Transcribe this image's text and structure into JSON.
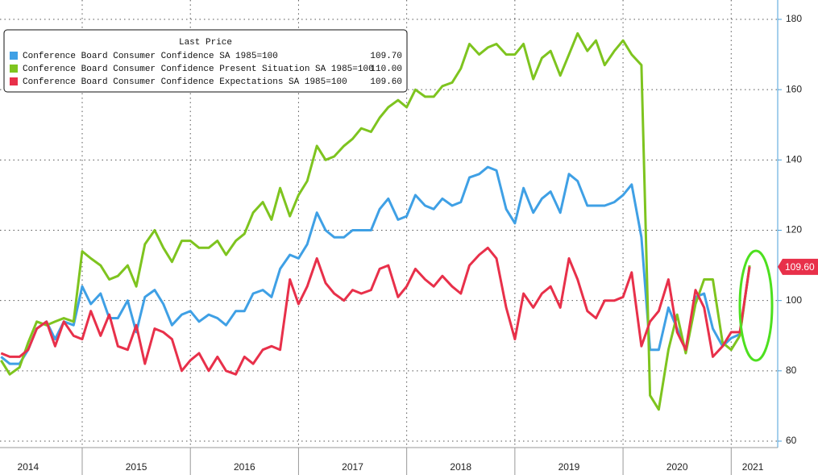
{
  "chart_data": {
    "type": "line",
    "x": [
      2014.25,
      2014.33,
      2014.42,
      2014.5,
      2014.58,
      2014.67,
      2014.75,
      2014.83,
      2014.92,
      2015,
      2015.08,
      2015.17,
      2015.25,
      2015.33,
      2015.42,
      2015.5,
      2015.58,
      2015.67,
      2015.75,
      2015.83,
      2015.92,
      2016,
      2016.08,
      2016.17,
      2016.25,
      2016.33,
      2016.42,
      2016.5,
      2016.58,
      2016.67,
      2016.75,
      2016.83,
      2016.92,
      2017,
      2017.08,
      2017.17,
      2017.25,
      2017.33,
      2017.42,
      2017.5,
      2017.58,
      2017.67,
      2017.75,
      2017.83,
      2017.92,
      2018,
      2018.08,
      2018.17,
      2018.25,
      2018.33,
      2018.42,
      2018.5,
      2018.58,
      2018.67,
      2018.75,
      2018.83,
      2018.92,
      2019,
      2019.08,
      2019.17,
      2019.25,
      2019.33,
      2019.42,
      2019.5,
      2019.58,
      2019.67,
      2019.75,
      2019.83,
      2019.92,
      2020,
      2020.08,
      2020.17,
      2020.25,
      2020.33,
      2020.42,
      2020.5,
      2020.58,
      2020.67,
      2020.75,
      2020.83,
      2020.92,
      2021,
      2021.08,
      2021.17
    ],
    "series": [
      {
        "name": "Conference Board Consumer Confidence SA 1985=100",
        "color": "#3fa0e5",
        "last_price": {
          "value": 109.7,
          "label": "109.70"
        },
        "values": [
          84,
          82,
          82,
          86,
          92,
          94,
          89,
          94,
          93,
          104,
          99,
          102,
          95,
          95,
          100,
          91,
          101,
          103,
          99,
          93,
          96,
          97,
          94,
          96,
          95,
          93,
          97,
          97,
          102,
          103,
          101,
          109,
          113,
          112,
          116,
          125,
          120,
          118,
          118,
          120,
          120,
          120,
          126,
          129,
          123,
          124,
          130,
          127,
          126,
          129,
          127,
          128,
          135,
          136,
          138,
          137,
          126,
          122,
          132,
          125,
          129,
          131,
          125,
          136,
          134,
          127,
          127,
          127,
          128,
          130,
          133,
          118,
          86,
          86,
          98,
          92,
          86,
          101,
          102,
          92,
          87,
          89.3,
          90.4,
          109.7
        ]
      },
      {
        "name": "Conference Board Consumer Confidence Present Situation SA 1985=100",
        "color": "#7ec41f",
        "last_price": {
          "value": 110,
          "label": "110.00"
        },
        "values": [
          83,
          79,
          81,
          88,
          94,
          93,
          94,
          95,
          94,
          114,
          112,
          110,
          106,
          107,
          110,
          104,
          116,
          120,
          115,
          111,
          117,
          117,
          115,
          115,
          117,
          113,
          117,
          119,
          125,
          128,
          123,
          132,
          124,
          130,
          134,
          144,
          140,
          141,
          144,
          146,
          149,
          148,
          152,
          155,
          157,
          155,
          160,
          158,
          158,
          161,
          162,
          166,
          173,
          170,
          172,
          173,
          170,
          170,
          173,
          163,
          169,
          171,
          164,
          170,
          176,
          171,
          174,
          167,
          171,
          174,
          170,
          167,
          73,
          69,
          86,
          96,
          85,
          99,
          106,
          106,
          88,
          86,
          90,
          110
        ]
      },
      {
        "name": "Conference Board Consumer Confidence Expectations SA 1985=100",
        "color": "#e8304a",
        "last_price": {
          "value": 109.6,
          "label": "109.60"
        },
        "tag": {
          "value": 109.6,
          "label": "109.60"
        },
        "values": [
          85,
          84,
          84,
          86,
          92,
          94,
          87,
          94,
          90,
          89,
          97,
          90,
          96,
          87,
          86,
          93,
          82,
          92,
          91,
          89,
          80,
          83,
          85,
          80,
          84,
          80,
          79,
          84,
          82,
          86,
          87,
          86,
          106,
          99,
          104,
          112,
          105,
          102,
          100,
          103,
          102,
          103,
          109,
          110,
          101,
          104,
          109,
          106,
          104,
          107,
          104,
          102,
          110,
          113,
          115,
          112,
          98,
          89,
          102,
          98,
          102,
          104,
          98,
          112,
          106,
          97,
          95,
          100,
          100,
          101,
          108,
          87,
          94,
          97,
          106,
          91,
          86,
          103,
          98,
          84,
          87,
          91,
          91,
          109.6
        ]
      }
    ],
    "legend_title": "Last Price",
    "legend": "upper left",
    "xlim": [
      2014.24,
      2021.43
    ],
    "xgrid": [
      2015,
      2016,
      2017,
      2018,
      2019,
      2020,
      2021
    ],
    "xticks": [
      {
        "value": 2014.5,
        "label": "2014"
      },
      {
        "value": 2015.5,
        "label": "2015"
      },
      {
        "value": 2016.5,
        "label": "2016"
      },
      {
        "value": 2017.5,
        "label": "2017"
      },
      {
        "value": 2018.5,
        "label": "2018"
      },
      {
        "value": 2019.5,
        "label": "2019"
      },
      {
        "value": 2020.5,
        "label": "2020"
      },
      {
        "value": 2021.2,
        "label": "2021"
      }
    ],
    "ylim": [
      60,
      180
    ],
    "yticks": [
      60,
      80,
      100,
      120,
      140,
      160,
      180
    ],
    "grid": true
  }
}
